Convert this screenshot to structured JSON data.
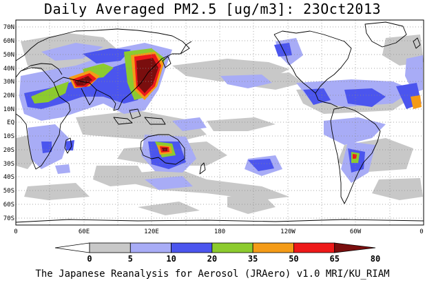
{
  "title": "Daily Averaged PM2.5 [ug/m3]: 23Oct2013",
  "credit": "The Japanese Reanalysis for Aerosol (JRAero) v1.0 MRI/KU_RIAM",
  "lat_labels": [
    "70N",
    "60N",
    "50N",
    "40N",
    "30N",
    "20N",
    "10N",
    "EQ",
    "10S",
    "20S",
    "30S",
    "40S",
    "50S",
    "60S",
    "70S"
  ],
  "lon_labels": [
    "0",
    "60E",
    "120E",
    "180",
    "120W",
    "60W",
    "0"
  ],
  "colorbar": {
    "levels": [
      "0",
      "5",
      "10",
      "20",
      "35",
      "50",
      "65",
      "80"
    ],
    "colors": [
      "#ffffff",
      "#c8c8c8",
      "#a8acf6",
      "#4b55ee",
      "#8ccb2e",
      "#f49b17",
      "#ee1919",
      "#7a0e0e"
    ]
  }
}
